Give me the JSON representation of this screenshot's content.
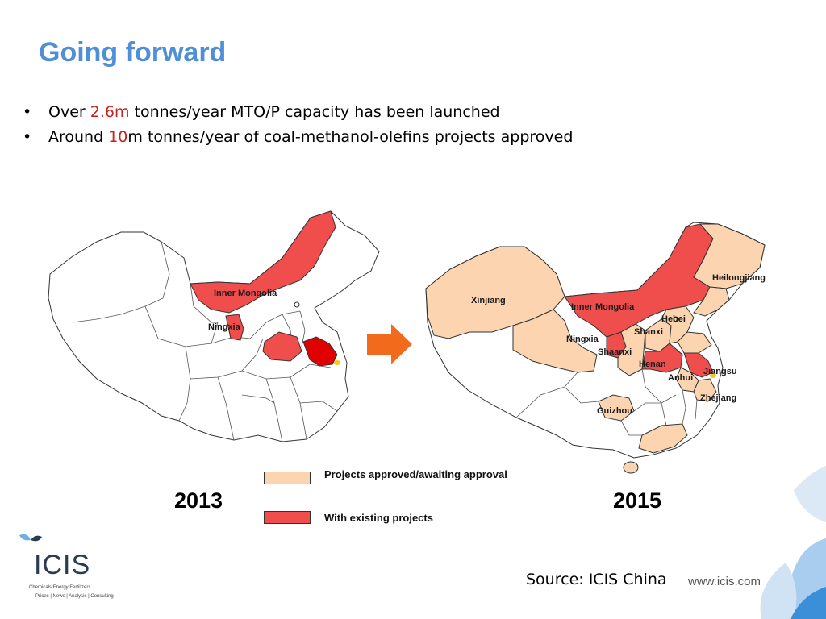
{
  "slide": {
    "title": "Going forward",
    "bullets": [
      {
        "before": "Over ",
        "highlight": "2.6m ",
        "after": "tonnes/year MTO/P capacity has been launched"
      },
      {
        "before": "Around ",
        "highlight": " 10",
        "after": "m tonnes/year of coal-methanol-olefins projects approved"
      }
    ],
    "bullet_char": "•",
    "highlight_color": "#cc1f1f",
    "title_color": "#4f8fd6"
  },
  "maps": {
    "left": {
      "year": "2013",
      "labels": [
        "Inner Mongolia",
        "Ningxia"
      ]
    },
    "right": {
      "year": "2015",
      "labels": [
        "Heilongjiang",
        "Xinjiang",
        "Inner Mongolia",
        "Hebei",
        "Shanxi",
        "Ningxia",
        "Shaanxi",
        "Henan",
        "Anhui",
        "Jiangsu",
        "Zhejiang",
        "Guizhou"
      ]
    }
  },
  "legend": {
    "items": [
      {
        "label": "Projects approved/awaiting approval",
        "color": "#fcd5b0"
      },
      {
        "label": "With existing projects",
        "color": "#f04d4d"
      }
    ]
  },
  "colors": {
    "existing": "#f04d4d",
    "approved": "#fcd5b0",
    "deep_red": "#e00000",
    "arrow": "#f26a1b",
    "outline": "#333333"
  },
  "footer": {
    "source": "Source: ICIS China",
    "url": "www.icis.com",
    "logo_word": "ICIS",
    "logo_tagline": "Chemicals  Energy  Fertilizers",
    "logo_services": "Prices | News | Analysis | Consulting"
  }
}
